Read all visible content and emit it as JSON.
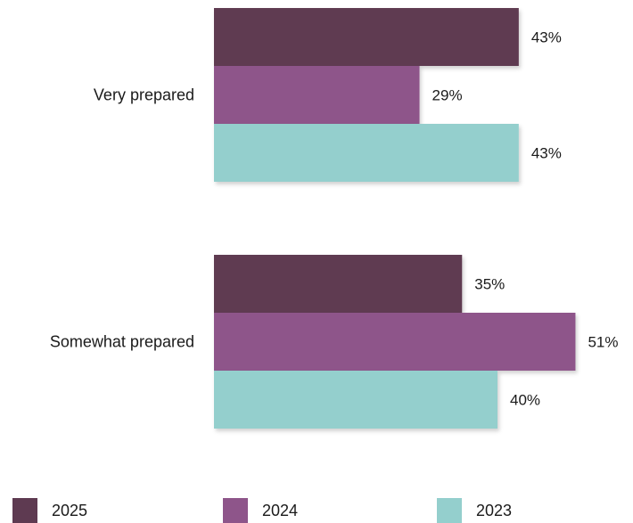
{
  "chart_data": {
    "type": "bar",
    "orientation": "horizontal",
    "categories": [
      "Very prepared",
      "Somewhat prepared"
    ],
    "series": [
      {
        "name": "2025",
        "color": "#5e3a51",
        "values": [
          43,
          35
        ],
        "labels": [
          "43%",
          "35%"
        ]
      },
      {
        "name": "2024",
        "color": "#8e558a",
        "values": [
          29,
          51
        ],
        "labels": [
          "29%",
          "51%"
        ]
      },
      {
        "name": "2023",
        "color": "#94cfcd",
        "values": [
          43,
          40
        ],
        "labels": [
          "43%",
          "40%"
        ]
      }
    ],
    "value_unit": "%",
    "grid": false,
    "legend_position": "bottom"
  }
}
